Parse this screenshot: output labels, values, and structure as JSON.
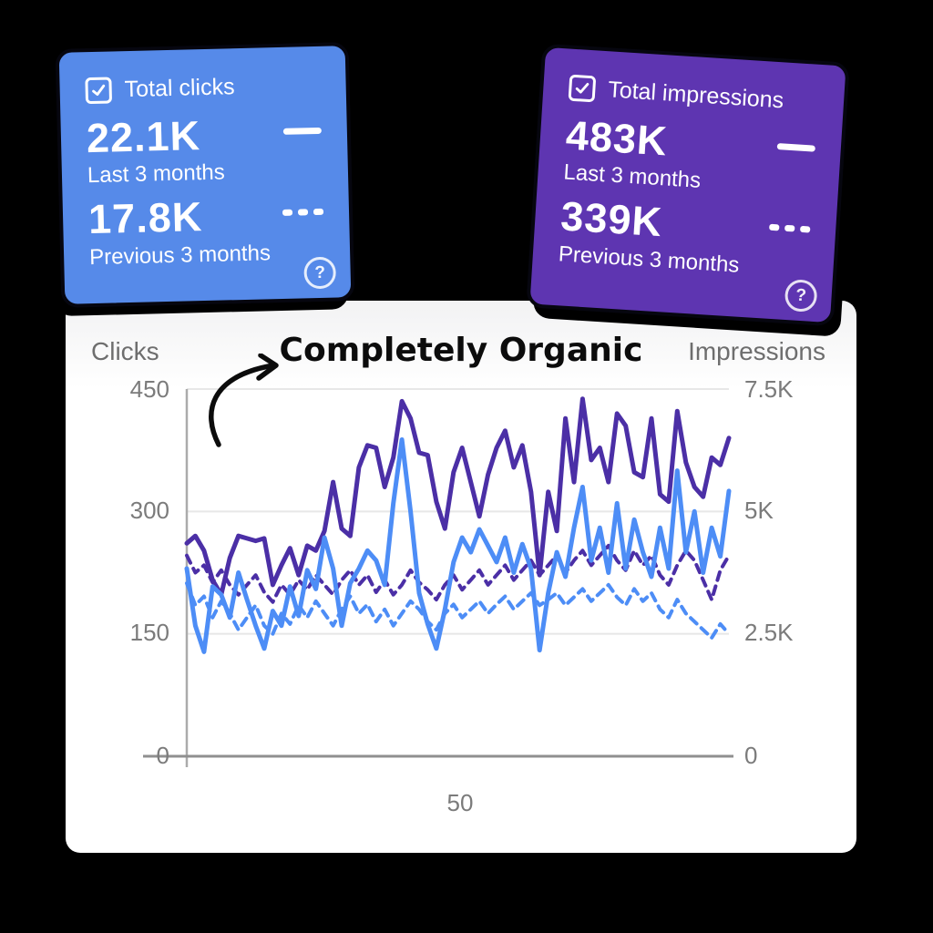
{
  "colors": {
    "background": "#000000",
    "panel": "#ffffff",
    "clicks_card": "#568AE9",
    "impressions_card": "#5E35B1",
    "clicks_line": "#4D8DF6",
    "impressions_line": "#4B2FA6",
    "grid": "#e7e7e7",
    "axis_baseline": "#8f8f8f",
    "axis_vertical": "#ababab",
    "tick_text": "#7b7b7b"
  },
  "cards": {
    "clicks": {
      "label": "Total clicks",
      "primary_value": "22.1K",
      "primary_caption": "Last 3 months",
      "secondary_value": "17.8K",
      "secondary_caption": "Previous 3 months",
      "help_glyph": "?"
    },
    "impressions": {
      "label": "Total impressions",
      "primary_value": "483K",
      "primary_caption": "Last 3 months",
      "secondary_value": "339K",
      "secondary_caption": "Previous 3 months",
      "help_glyph": "?"
    }
  },
  "annotation": {
    "title": "Completely Organic"
  },
  "chart": {
    "left_axis_label": "Clicks",
    "right_axis_label": "Impressions",
    "left_ticks": [
      "450",
      "300",
      "150",
      "0"
    ],
    "right_ticks": [
      "7.5K",
      "5K",
      "2.5K",
      "0"
    ],
    "x_tick": "50"
  },
  "chart_data": {
    "type": "line",
    "title": "Completely Organic",
    "x": {
      "tick_label": "50",
      "num_points": 64
    },
    "left_axis": {
      "label": "Clicks",
      "range": [
        0,
        450
      ],
      "ticks": [
        0,
        150,
        300,
        450
      ]
    },
    "right_axis": {
      "label": "Impressions",
      "range": [
        0,
        7500
      ],
      "ticks": [
        0,
        2500,
        5000,
        7500
      ]
    },
    "grid": true,
    "legend_position": "none",
    "series": [
      {
        "name": "Impressions — previous 3 months",
        "axis": "right",
        "style": "dashed",
        "color": "#4B2FA6",
        "values": [
          4100,
          3750,
          3900,
          3550,
          3800,
          3500,
          3300,
          3500,
          3700,
          3350,
          3150,
          3500,
          3300,
          3600,
          3400,
          3700,
          3500,
          3300,
          3600,
          3800,
          3500,
          3700,
          3350,
          3600,
          3300,
          3500,
          3800,
          3550,
          3400,
          3200,
          3500,
          3700,
          3400,
          3600,
          3800,
          3500,
          3700,
          3900,
          3600,
          3800,
          4000,
          3700,
          3900,
          4100,
          3750,
          4000,
          4200,
          3900,
          4100,
          4300,
          4000,
          3800,
          4200,
          3900,
          4100,
          3700,
          3500,
          3900,
          4200,
          4000,
          3600,
          3200,
          3800,
          4100
        ]
      },
      {
        "name": "Clicks — previous 3 months",
        "axis": "left",
        "style": "dashed",
        "color": "#4D8DF6",
        "values": [
          212,
          185,
          196,
          170,
          190,
          175,
          155,
          170,
          185,
          160,
          150,
          175,
          162,
          185,
          170,
          190,
          175,
          160,
          180,
          196,
          175,
          186,
          165,
          180,
          160,
          175,
          190,
          180,
          165,
          155,
          175,
          186,
          170,
          180,
          190,
          175,
          186,
          196,
          180,
          190,
          200,
          185,
          192,
          200,
          185,
          195,
          205,
          190,
          200,
          210,
          195,
          185,
          205,
          190,
          200,
          180,
          170,
          192,
          175,
          165,
          155,
          145,
          162,
          150
        ]
      },
      {
        "name": "Impressions — last 3 months",
        "axis": "right",
        "style": "solid",
        "color": "#4B2FA6",
        "values": [
          4350,
          4500,
          4200,
          3600,
          3300,
          4050,
          4500,
          4450,
          4400,
          4450,
          3500,
          3900,
          4250,
          3700,
          4300,
          4200,
          4600,
          5600,
          4650,
          4500,
          5900,
          6350,
          6300,
          5500,
          6100,
          7250,
          6900,
          6200,
          6150,
          5200,
          4650,
          5800,
          6300,
          5600,
          4900,
          5750,
          6300,
          6650,
          5900,
          6350,
          5400,
          3700,
          5400,
          4600,
          6900,
          5600,
          7300,
          6050,
          6300,
          5600,
          7000,
          6750,
          5800,
          5700,
          6900,
          5350,
          5200,
          7050,
          6000,
          5500,
          5300,
          6100,
          5950,
          6500
        ]
      },
      {
        "name": "Clicks — last 3 months",
        "axis": "left",
        "style": "solid",
        "color": "#4D8DF6",
        "values": [
          230,
          160,
          128,
          208,
          198,
          170,
          225,
          192,
          160,
          132,
          178,
          160,
          208,
          172,
          228,
          205,
          268,
          230,
          160,
          212,
          230,
          252,
          240,
          210,
          310,
          388,
          300,
          200,
          162,
          132,
          180,
          238,
          268,
          250,
          278,
          258,
          238,
          268,
          225,
          260,
          230,
          130,
          200,
          250,
          220,
          280,
          330,
          240,
          280,
          225,
          310,
          230,
          290,
          250,
          220,
          280,
          230,
          350,
          250,
          300,
          225,
          280,
          245,
          325
        ]
      }
    ]
  }
}
